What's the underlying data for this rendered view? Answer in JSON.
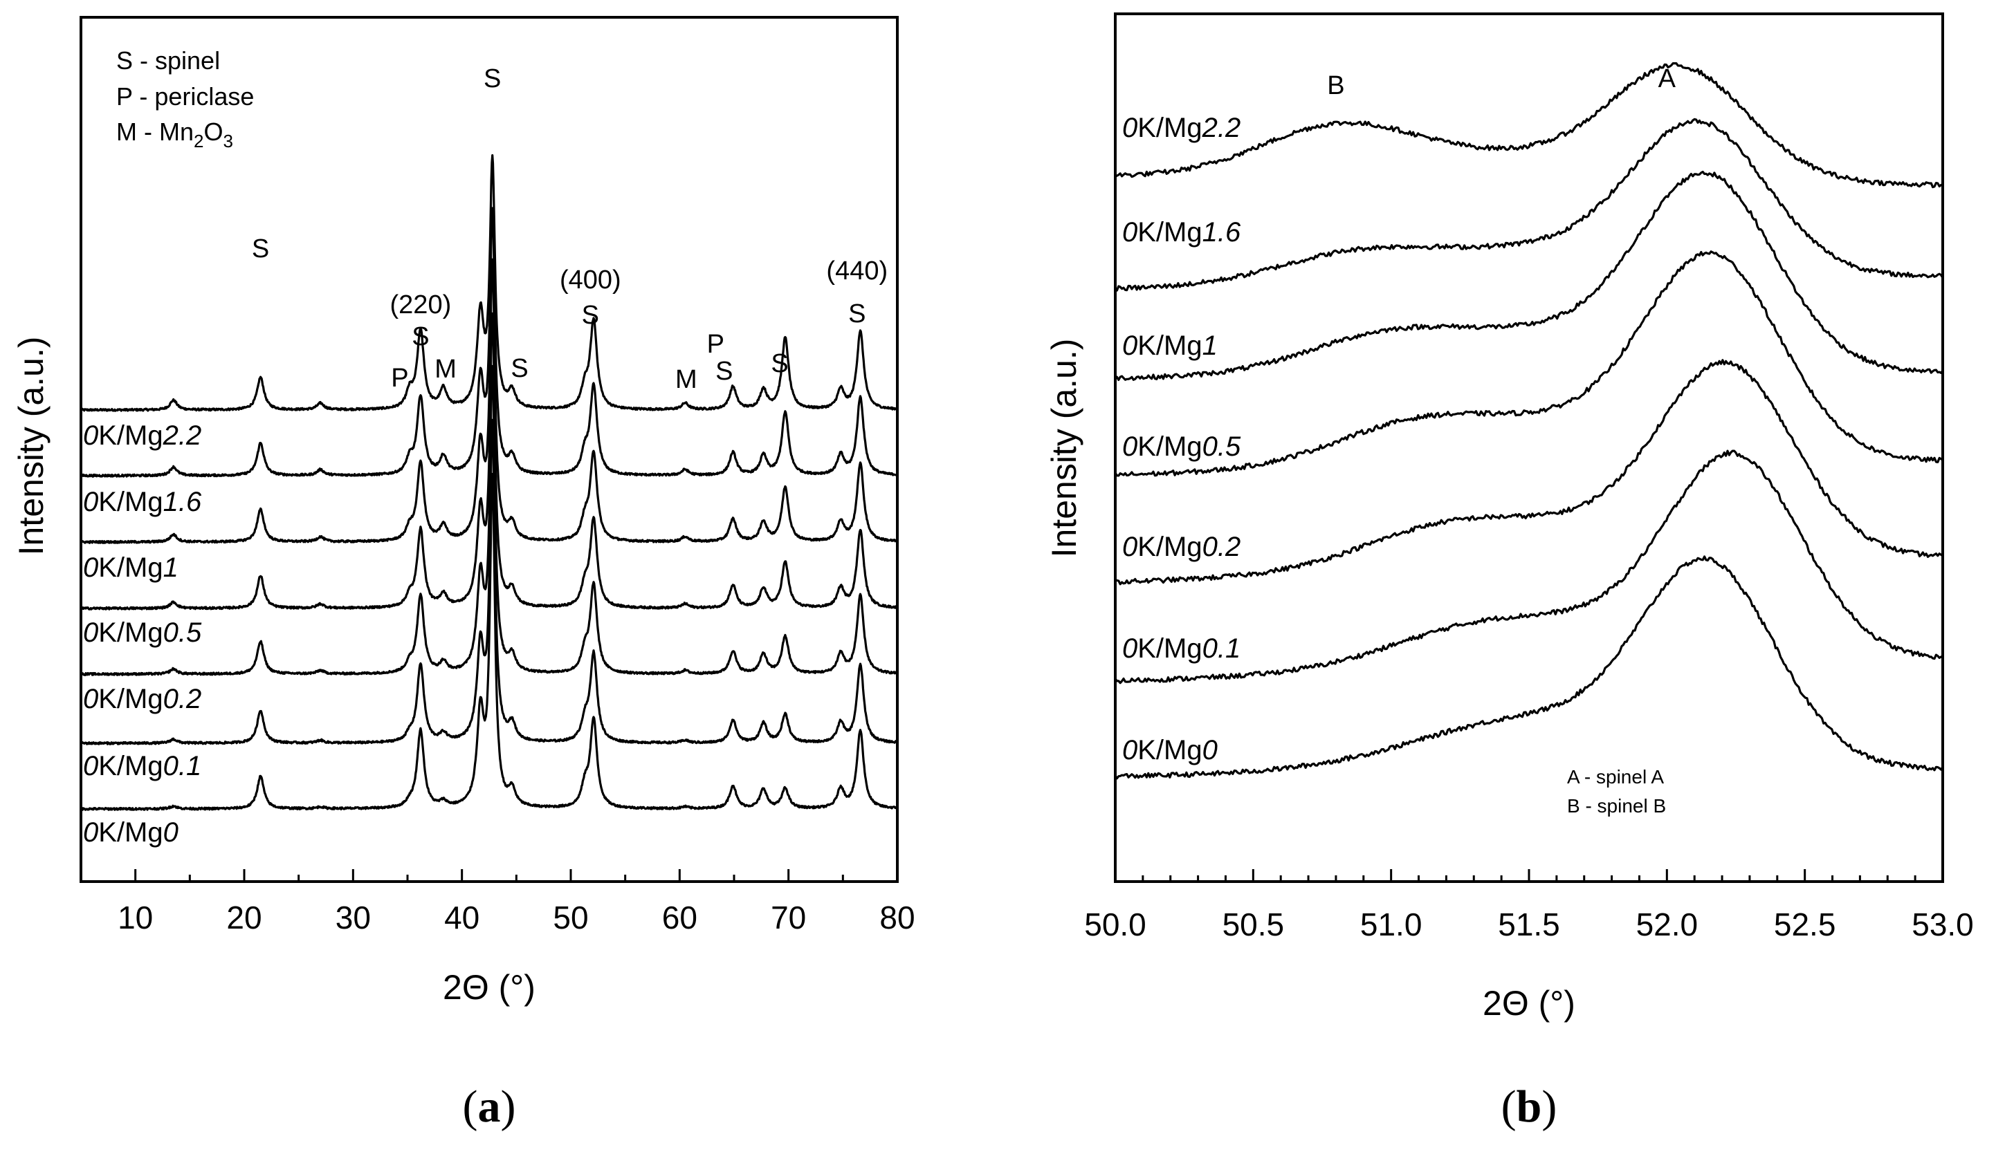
{
  "chart_data": [
    {
      "id": "a",
      "type": "line",
      "caption_letter": "a",
      "xlabel": "2Θ (°)",
      "ylabel": "Intensity (a.u.)",
      "xlim": [
        5,
        80
      ],
      "xticks": [
        "10",
        "20",
        "30",
        "40",
        "50",
        "60",
        "70",
        "80"
      ],
      "series_labels": [
        {
          "prefix": "0",
          "mid": "K/Mg",
          "num": "2.2"
        },
        {
          "prefix": "0",
          "mid": "K/Mg",
          "num": "1.6"
        },
        {
          "prefix": "0",
          "mid": "K/Mg",
          "num": "1"
        },
        {
          "prefix": "0",
          "mid": "K/Mg",
          "num": "0.5"
        },
        {
          "prefix": "0",
          "mid": "K/Mg",
          "num": "0.2"
        },
        {
          "prefix": "0",
          "mid": "K/Mg",
          "num": "0.1"
        },
        {
          "prefix": "0",
          "mid": "K/Mg",
          "num": "0"
        }
      ],
      "peaks_note": "Approximate reflections read from the pattern (2θ, relative height)",
      "peaks": [
        {
          "x": 13.5,
          "h": 0.03
        },
        {
          "x": 21.5,
          "h": 0.1
        },
        {
          "x": 27.0,
          "h": 0.02
        },
        {
          "x": 35.2,
          "h": 0.05
        },
        {
          "x": 36.2,
          "h": 0.24
        },
        {
          "x": 38.3,
          "h": 0.06
        },
        {
          "x": 41.7,
          "h": 0.28
        },
        {
          "x": 42.8,
          "h": 1.0
        },
        {
          "x": 44.6,
          "h": 0.05
        },
        {
          "x": 51.3,
          "h": 0.06
        },
        {
          "x": 52.1,
          "h": 0.27
        },
        {
          "x": 60.5,
          "h": 0.02
        },
        {
          "x": 64.9,
          "h": 0.07
        },
        {
          "x": 67.7,
          "h": 0.06
        },
        {
          "x": 69.7,
          "h": 0.22
        },
        {
          "x": 74.8,
          "h": 0.06
        },
        {
          "x": 76.6,
          "h": 0.24
        }
      ],
      "legend": [
        {
          "text": "S - spinel"
        },
        {
          "text": "P - periclase"
        },
        {
          "text": "M - Mn",
          "sub1": "2",
          "mid": "O",
          "sub2": "3"
        }
      ],
      "annotations": [
        {
          "text": "S",
          "x": 21.5
        },
        {
          "text": "(220)",
          "x": 36.2
        },
        {
          "text": "S",
          "x": 36.2
        },
        {
          "text": "P",
          "x": 34.3
        },
        {
          "text": "M",
          "x": 38.5
        },
        {
          "text": "S",
          "x": 42.8
        },
        {
          "text": "S",
          "x": 45.3
        },
        {
          "text": "(400)",
          "x": 51.8
        },
        {
          "text": "S",
          "x": 51.8
        },
        {
          "text": "M",
          "x": 60.6
        },
        {
          "text": "P",
          "x": 63.3
        },
        {
          "text": "S",
          "x": 64.1
        },
        {
          "text": "S",
          "x": 69.2
        },
        {
          "text": "(440)",
          "x": 76.3
        },
        {
          "text": "S",
          "x": 76.3
        }
      ]
    },
    {
      "id": "b",
      "type": "line",
      "caption_letter": "b",
      "xlabel": "2Θ (°)",
      "ylabel": "Intensity (a.u.)",
      "xlim": [
        50.0,
        53.0
      ],
      "xticks": [
        "50.0",
        "50.5",
        "51.0",
        "51.5",
        "52.0",
        "52.5",
        "53.0"
      ],
      "series_labels": [
        {
          "prefix": "0",
          "mid": "K/Mg",
          "num": "2.2"
        },
        {
          "prefix": "0",
          "mid": "K/Mg",
          "num": "1.6"
        },
        {
          "prefix": "0",
          "mid": "K/Mg",
          "num": "1"
        },
        {
          "prefix": "0",
          "mid": "K/Mg",
          "num": "0.5"
        },
        {
          "prefix": "0",
          "mid": "K/Mg",
          "num": "0.2"
        },
        {
          "prefix": "0",
          "mid": "K/Mg",
          "num": "0.1"
        },
        {
          "prefix": "0",
          "mid": "K/Mg",
          "num": "0"
        }
      ],
      "peak_A_position": [
        52.05,
        52.12,
        52.15,
        52.17,
        52.22,
        52.25,
        52.15
      ],
      "peak_A_height": [
        0.55,
        0.75,
        0.95,
        1.0,
        0.95,
        1.0,
        1.0
      ],
      "peak_B_position": [
        50.8,
        50.85,
        50.95,
        51.05,
        51.15,
        51.25,
        51.4
      ],
      "peak_B_height": [
        0.7,
        0.35,
        0.4,
        0.4,
        0.35,
        0.25,
        0.15
      ],
      "peak_labels": [
        {
          "text": "B",
          "x": 50.8
        },
        {
          "text": "A",
          "x": 52.0
        }
      ],
      "legend": [
        {
          "text": "A - spinel A"
        },
        {
          "text": "B - spinel B"
        }
      ]
    }
  ]
}
